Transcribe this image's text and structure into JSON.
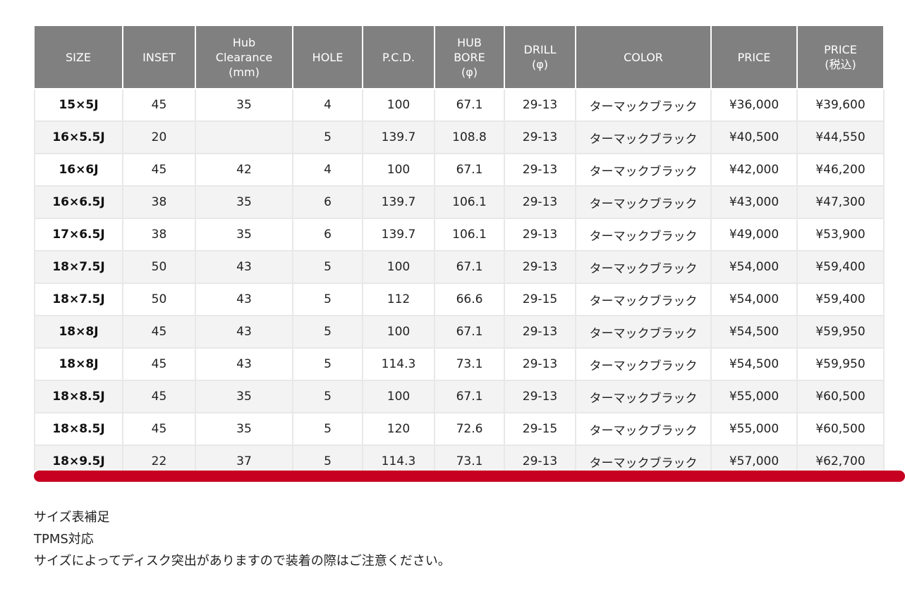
{
  "table": {
    "headers": [
      "SIZE",
      "INSET",
      "Hub\nClearance\n(mm)",
      "HOLE",
      "P.C.D.",
      "HUB\nBORE\n(φ)",
      "DRILL\n(φ)",
      "COLOR",
      "PRICE",
      "PRICE\n(税込)"
    ],
    "rows": [
      [
        "15×5J",
        "45",
        "35",
        "4",
        "100",
        "67.1",
        "29-13",
        "ターマックブラック",
        "¥36,000",
        "¥39,600"
      ],
      [
        "16×5.5J",
        "20",
        "",
        "5",
        "139.7",
        "108.8",
        "29-13",
        "ターマックブラック",
        "¥40,500",
        "¥44,550"
      ],
      [
        "16×6J",
        "45",
        "42",
        "4",
        "100",
        "67.1",
        "29-13",
        "ターマックブラック",
        "¥42,000",
        "¥46,200"
      ],
      [
        "16×6.5J",
        "38",
        "35",
        "6",
        "139.7",
        "106.1",
        "29-13",
        "ターマックブラック",
        "¥43,000",
        "¥47,300"
      ],
      [
        "17×6.5J",
        "38",
        "35",
        "6",
        "139.7",
        "106.1",
        "29-13",
        "ターマックブラック",
        "¥49,000",
        "¥53,900"
      ],
      [
        "18×7.5J",
        "50",
        "43",
        "5",
        "100",
        "67.1",
        "29-13",
        "ターマックブラック",
        "¥54,000",
        "¥59,400"
      ],
      [
        "18×7.5J",
        "50",
        "43",
        "5",
        "112",
        "66.6",
        "29-15",
        "ターマックブラック",
        "¥54,000",
        "¥59,400"
      ],
      [
        "18×8J",
        "45",
        "43",
        "5",
        "100",
        "67.1",
        "29-13",
        "ターマックブラック",
        "¥54,500",
        "¥59,950"
      ],
      [
        "18×8J",
        "45",
        "43",
        "5",
        "114.3",
        "73.1",
        "29-13",
        "ターマックブラック",
        "¥54,500",
        "¥59,950"
      ],
      [
        "18×8.5J",
        "45",
        "35",
        "5",
        "100",
        "67.1",
        "29-13",
        "ターマックブラック",
        "¥55,000",
        "¥60,500"
      ],
      [
        "18×8.5J",
        "45",
        "35",
        "5",
        "120",
        "72.6",
        "29-15",
        "ターマックブラック",
        "¥55,000",
        "¥60,500"
      ],
      [
        "18×9.5J",
        "22",
        "37",
        "5",
        "114.3",
        "73.1",
        "29-13",
        "ターマックブラック",
        "¥57,000",
        "¥62,700"
      ]
    ]
  },
  "colors": {
    "header_bg": "#808080",
    "row_alt_bg": "#f3f3f3",
    "scrollbar_accent": "#c70022"
  },
  "notes": [
    "サイズ表補足",
    "TPMS対応",
    "サイズによってディスク突出がありますので装着の際はご注意ください。"
  ]
}
